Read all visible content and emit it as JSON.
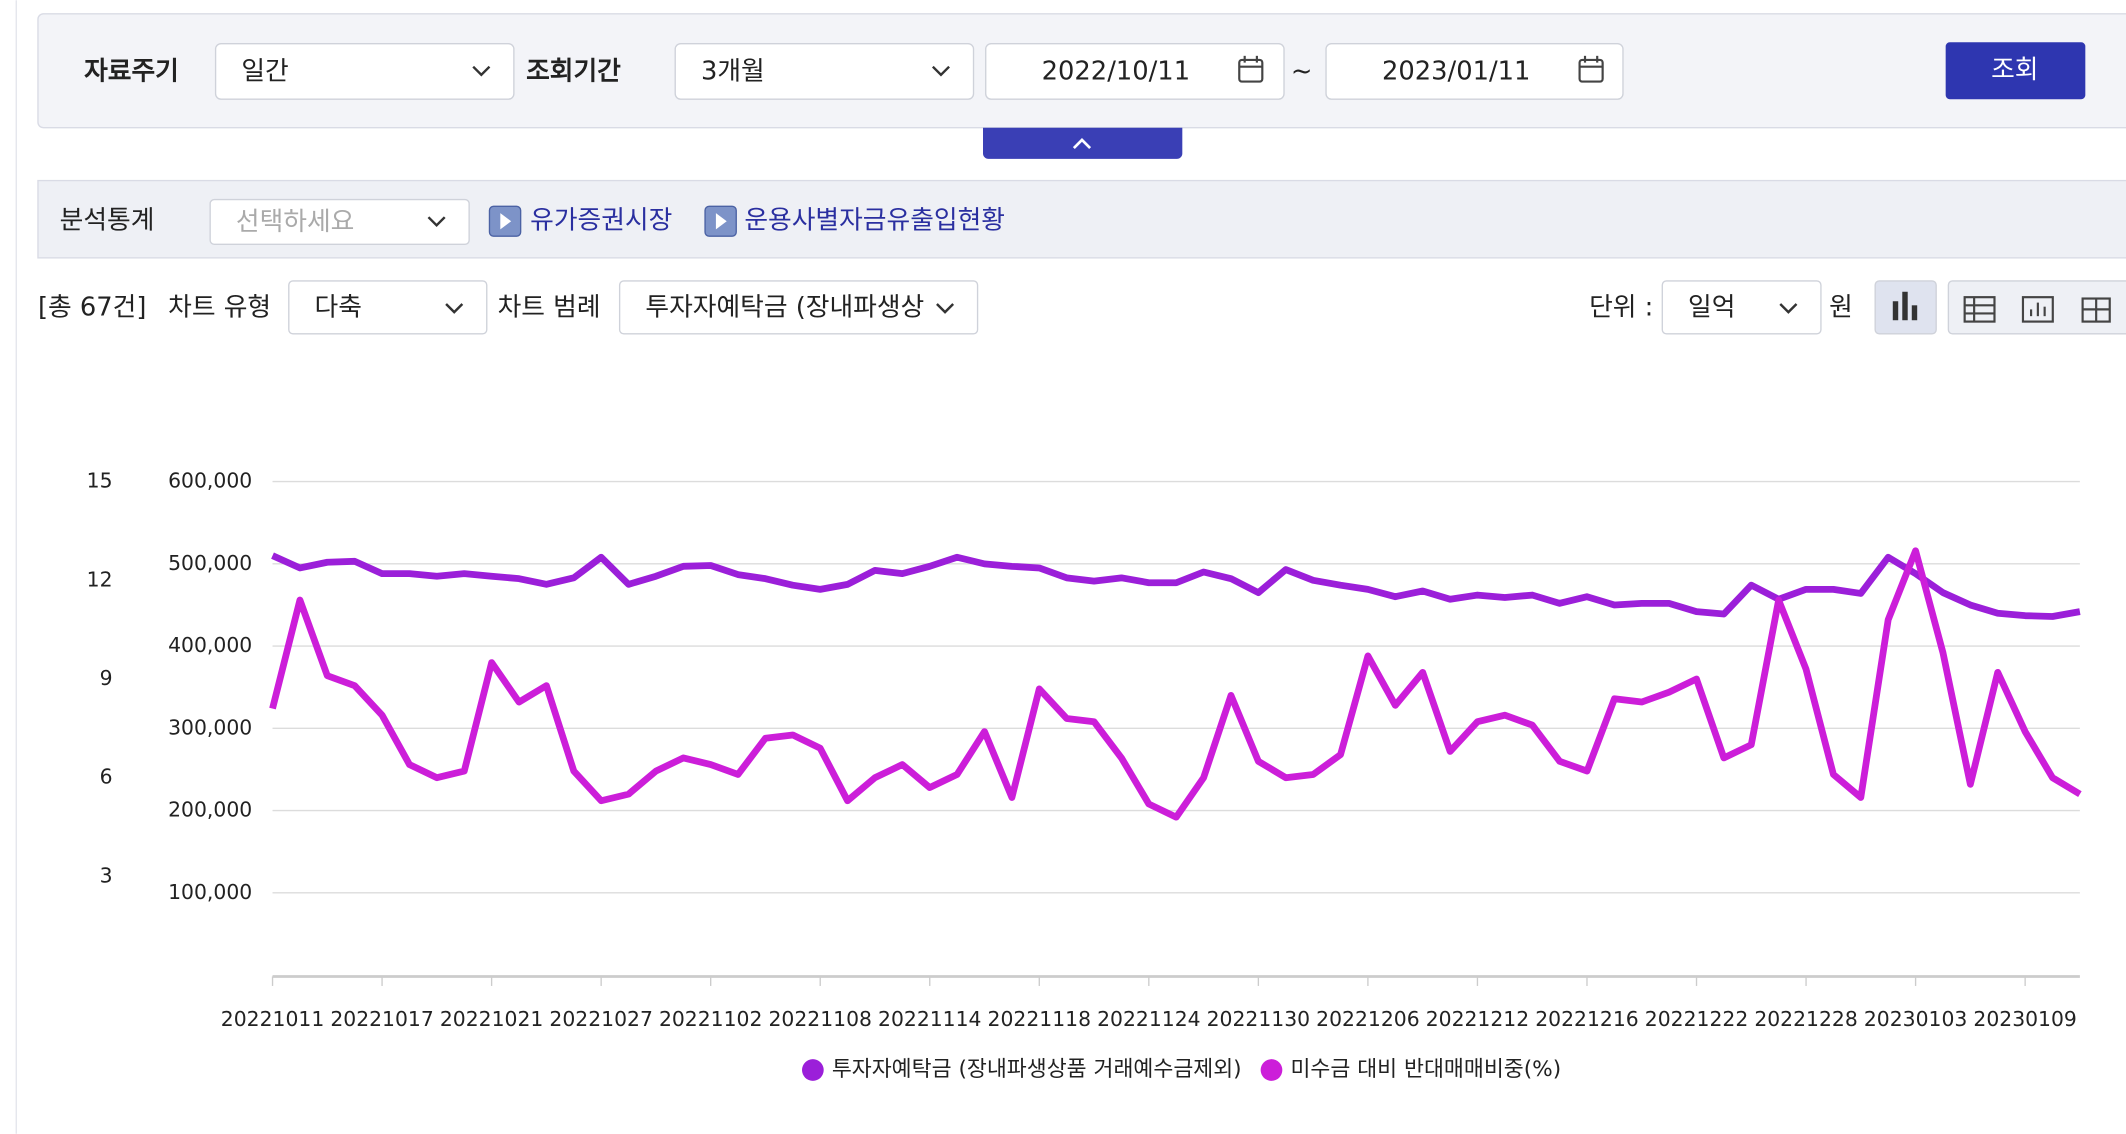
{
  "filter": {
    "period_label": "자료주기",
    "period_value": "일간",
    "range_label": "조회기간",
    "range_value": "3개월",
    "start_date": "2022/10/11",
    "tilde": "~",
    "end_date": "2023/01/11",
    "search_button": "조회"
  },
  "analysis": {
    "label": "분석통계",
    "select_placeholder": "선택하세요",
    "links": [
      "유가증권시장",
      "운용사별자금유출입현황"
    ]
  },
  "toolbar": {
    "count": "[총 67건]",
    "chart_type_label": "차트 유형",
    "chart_type_value": "다축",
    "legend_label": "차트 범례",
    "legend_value": "투자자예탁금 (장내파생상",
    "unit_label": "단위 :",
    "unit_value": "일억",
    "unit_suffix": "원"
  },
  "chart_data": {
    "type": "line",
    "categories": [
      "20221011",
      null,
      null,
      null,
      "20221017",
      null,
      null,
      null,
      "20221021",
      null,
      null,
      null,
      "20221027",
      null,
      null,
      null,
      "20221102",
      null,
      null,
      null,
      "20221108",
      null,
      null,
      null,
      "20221114",
      null,
      null,
      null,
      "20221118",
      null,
      null,
      null,
      "20221124",
      null,
      null,
      null,
      "20221130",
      null,
      null,
      null,
      "20221206",
      null,
      null,
      null,
      "20221212",
      null,
      null,
      null,
      "20221216",
      null,
      null,
      null,
      "20221222",
      null,
      null,
      null,
      "20221228",
      null,
      null,
      null,
      "20230103",
      null,
      null,
      null,
      "20230109",
      null,
      null
    ],
    "series": [
      {
        "name": "투자자예탁금 (장내파생상품 거래예수금제외)",
        "color": "#9b1fd9",
        "axis": "y",
        "values": [
          510000,
          495000,
          502000,
          503000,
          488000,
          488000,
          485000,
          488000,
          485000,
          482000,
          475000,
          483000,
          508000,
          475000,
          485000,
          497000,
          498000,
          487000,
          482000,
          474000,
          469000,
          475000,
          492000,
          488000,
          497000,
          508000,
          500000,
          497000,
          495000,
          483000,
          479000,
          483000,
          477000,
          477000,
          490000,
          482000,
          465000,
          493000,
          480000,
          474000,
          469000,
          460000,
          467000,
          457000,
          462000,
          459000,
          462000,
          452000,
          460000,
          450000,
          452000,
          452000,
          442000,
          439000,
          474000,
          457000,
          469000,
          469000,
          464000,
          508000,
          488000,
          465000,
          450000,
          440000,
          437000,
          436000,
          442000
        ]
      },
      {
        "name": "미수금 대비 반대매매비중(%)",
        "color": "#cc1ed9",
        "axis": "y2",
        "values": [
          8.1,
          11.4,
          9.1,
          8.8,
          7.9,
          6.4,
          6.0,
          6.2,
          9.5,
          8.3,
          8.8,
          6.2,
          5.3,
          5.5,
          6.2,
          6.6,
          6.4,
          6.1,
          7.2,
          7.3,
          6.9,
          5.3,
          6.0,
          6.4,
          5.7,
          6.1,
          7.4,
          5.4,
          8.7,
          7.8,
          7.7,
          6.6,
          5.2,
          4.8,
          6.0,
          8.5,
          6.5,
          6.0,
          6.1,
          6.7,
          9.7,
          8.2,
          9.2,
          6.8,
          7.7,
          7.9,
          7.6,
          6.5,
          6.2,
          8.4,
          8.3,
          8.6,
          9.0,
          6.6,
          7.0,
          11.4,
          9.3,
          6.1,
          5.4,
          10.8,
          12.9,
          9.8,
          5.8,
          9.2,
          7.4,
          6.0,
          5.5
        ]
      }
    ],
    "ylim": [
      0,
      600000
    ],
    "yticks": [
      {
        "value": 100000,
        "label": "100,000"
      },
      {
        "value": 200000,
        "label": "200,000"
      },
      {
        "value": 300000,
        "label": "300,000"
      },
      {
        "value": 400000,
        "label": "400,000"
      },
      {
        "value": 500000,
        "label": "500,000"
      },
      {
        "value": 600000,
        "label": "600,000"
      }
    ],
    "y2lim": [
      0,
      15
    ],
    "y2ticks": [
      3,
      6,
      9,
      12,
      15
    ],
    "grid": true,
    "legend": "bottom"
  }
}
